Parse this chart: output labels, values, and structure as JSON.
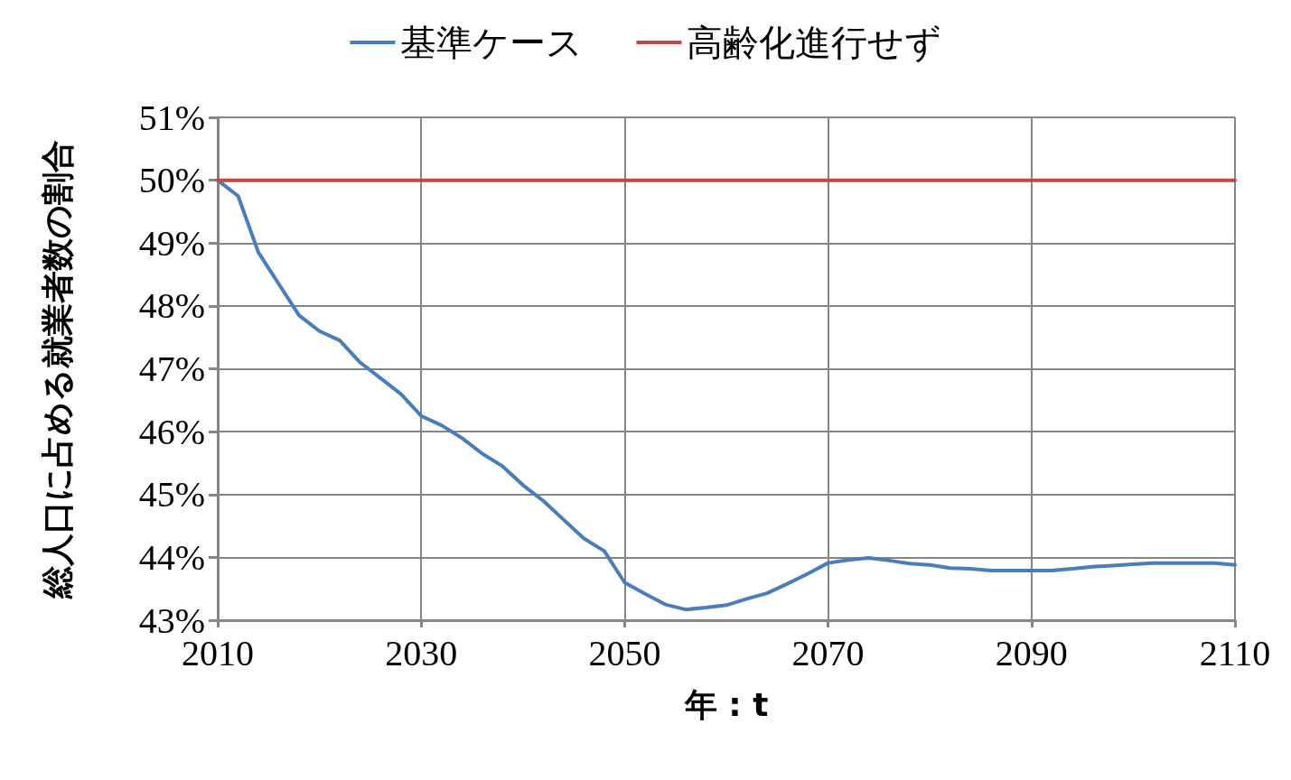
{
  "chart_data": {
    "type": "line",
    "xlabel": "年 : t",
    "ylabel": "総人口に占める就業者数の割合",
    "x": [
      2010,
      2012,
      2014,
      2016,
      2018,
      2020,
      2022,
      2024,
      2026,
      2028,
      2030,
      2032,
      2034,
      2036,
      2038,
      2040,
      2042,
      2044,
      2046,
      2048,
      2050,
      2052,
      2054,
      2056,
      2058,
      2060,
      2062,
      2064,
      2066,
      2068,
      2070,
      2072,
      2074,
      2076,
      2078,
      2080,
      2082,
      2084,
      2086,
      2088,
      2090,
      2092,
      2094,
      2096,
      2098,
      2100,
      2102,
      2104,
      2106,
      2108,
      2110
    ],
    "series": [
      {
        "name": "基準ケース",
        "color": "#4a7ebb",
        "values": [
          50.0,
          49.75,
          48.85,
          48.35,
          47.85,
          47.6,
          47.45,
          47.1,
          46.85,
          46.6,
          46.25,
          46.1,
          45.9,
          45.65,
          45.45,
          45.15,
          44.9,
          44.6,
          44.3,
          44.1,
          43.6,
          43.42,
          43.25,
          43.17,
          43.2,
          43.24,
          43.34,
          43.43,
          43.58,
          43.74,
          43.91,
          43.96,
          43.99,
          43.95,
          43.9,
          43.88,
          43.83,
          43.82,
          43.79,
          43.79,
          43.79,
          43.79,
          43.82,
          43.85,
          43.87,
          43.89,
          43.91,
          43.91,
          43.91,
          43.91,
          43.88
        ]
      },
      {
        "name": "高齢化進行せず",
        "color": "#be4b48",
        "values": [
          50,
          50,
          50,
          50,
          50,
          50,
          50,
          50,
          50,
          50,
          50,
          50,
          50,
          50,
          50,
          50,
          50,
          50,
          50,
          50,
          50,
          50,
          50,
          50,
          50,
          50,
          50,
          50,
          50,
          50,
          50,
          50,
          50,
          50,
          50,
          50,
          50,
          50,
          50,
          50,
          50,
          50,
          50,
          50,
          50,
          50,
          50,
          50,
          50,
          50,
          50
        ]
      }
    ],
    "xlim": [
      2010,
      2110
    ],
    "xticks": [
      2010,
      2030,
      2050,
      2070,
      2090,
      2110
    ],
    "ylim": [
      43,
      51
    ],
    "yticks": [
      {
        "value": 43,
        "label": "43%"
      },
      {
        "value": 44,
        "label": "44%"
      },
      {
        "value": 45,
        "label": "45%"
      },
      {
        "value": 46,
        "label": "46%"
      },
      {
        "value": 47,
        "label": "47%"
      },
      {
        "value": 48,
        "label": "48%"
      },
      {
        "value": 49,
        "label": "49%"
      },
      {
        "value": 50,
        "label": "50%"
      },
      {
        "value": 51,
        "label": "51%"
      }
    ],
    "grid": true,
    "legend": "top",
    "marker": "none",
    "line_style": "solid"
  }
}
